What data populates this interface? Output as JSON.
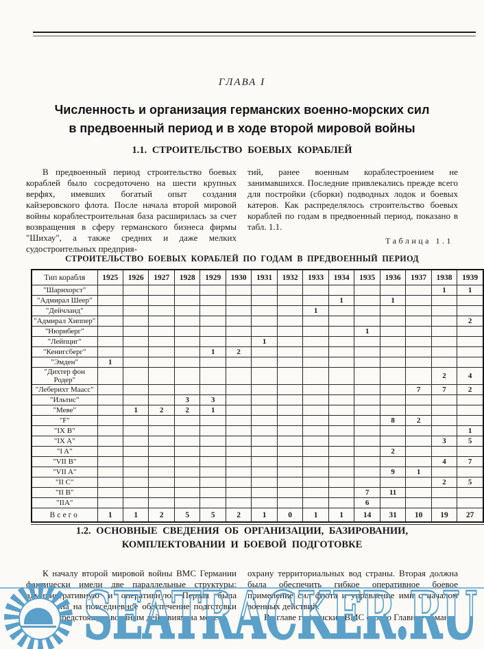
{
  "chapter": "ГЛАВА I",
  "title": {
    "line1": "Численность и организация германских военно-морских сил",
    "line2": "в предвоенный период и в ходе второй мировой войны"
  },
  "section1": {
    "heading": "1.1. СТРОИТЕЛЬСТВО БОЕВЫХ КОРАБЛЕЙ",
    "col_left": "В предвоенный период строительство боевых кораблей было сосредоточено на шести крупных верфях, имевших богатый опыт создания кайзеровского флота. После начала второй мировой войны кораблестроительная база расширилась за счет возвращения в сферу германского бизнеса фирмы \"Шихау\", а также средних и даже мелких судостроительных предприя-",
    "col_right": "тий, ранее военным кораблестроением не занимавшихся. Последние привлекались прежде всего для постройки (сборки) подводных лодок и боевых катеров. Как распределялось строительство боевых кораблей по годам в предвоенный период, показано в табл. 1.1.",
    "table_caption": "Таблица 1.1"
  },
  "table": {
    "title": "СТРОИТЕЛЬСТВО БОЕВЫХ КОРАБЛЕЙ ПО ГОДАМ В ПРЕДВОЕННЫЙ ПЕРИОД",
    "header": [
      "Тип корабля",
      "1925",
      "1926",
      "1927",
      "1928",
      "1929",
      "1930",
      "1931",
      "1932",
      "1933",
      "1934",
      "1935",
      "1936",
      "1937",
      "1938",
      "1939"
    ],
    "rows": [
      {
        "label": "\"Шарнхорст\"",
        "values": [
          "",
          "",
          "",
          "",
          "",
          "",
          "",
          "",
          "",
          "",
          "",
          "",
          "",
          "1",
          "1"
        ]
      },
      {
        "label": "\"Адмирал Шеер\"",
        "values": [
          "",
          "",
          "",
          "",
          "",
          "",
          "",
          "",
          "",
          "1",
          "",
          "1",
          "",
          "",
          ""
        ]
      },
      {
        "label": "\"Дейчланд\"",
        "values": [
          "",
          "",
          "",
          "",
          "",
          "",
          "",
          "",
          "1",
          "",
          "",
          "",
          "",
          "",
          ""
        ]
      },
      {
        "label": "\"Адмирал Хиппер\"",
        "values": [
          "",
          "",
          "",
          "",
          "",
          "",
          "",
          "",
          "",
          "",
          "",
          "",
          "",
          "",
          "2"
        ]
      },
      {
        "label": "\"Нюрнберг\"",
        "values": [
          "",
          "",
          "",
          "",
          "",
          "",
          "",
          "",
          "",
          "",
          "1",
          "",
          "",
          "",
          ""
        ]
      },
      {
        "label": "\"Лейпциг\"",
        "values": [
          "",
          "",
          "",
          "",
          "",
          "",
          "1",
          "",
          "",
          "",
          "",
          "",
          "",
          "",
          ""
        ]
      },
      {
        "label": "\"Кенигсберг\"",
        "values": [
          "",
          "",
          "",
          "",
          "1",
          "2",
          "",
          "",
          "",
          "",
          "",
          "",
          "",
          "",
          ""
        ]
      },
      {
        "label": "\"Эмден\"",
        "values": [
          "1",
          "",
          "",
          "",
          "",
          "",
          "",
          "",
          "",
          "",
          "",
          "",
          "",
          "",
          ""
        ]
      },
      {
        "label": "\"Дихтер фон Родер\"",
        "values": [
          "",
          "",
          "",
          "",
          "",
          "",
          "",
          "",
          "",
          "",
          "",
          "",
          "",
          "2",
          "4"
        ]
      },
      {
        "label": "\"Леберихт Маасс\"",
        "values": [
          "",
          "",
          "",
          "",
          "",
          "",
          "",
          "",
          "",
          "",
          "",
          "",
          "7",
          "7",
          "2"
        ]
      },
      {
        "label": "\"Ильтис\"",
        "values": [
          "",
          "",
          "",
          "3",
          "3",
          "",
          "",
          "",
          "",
          "",
          "",
          "",
          "",
          "",
          ""
        ]
      },
      {
        "label": "\"Меве\"",
        "values": [
          "",
          "1",
          "2",
          "2",
          "1",
          "",
          "",
          "",
          "",
          "",
          "",
          "",
          "",
          "",
          ""
        ]
      },
      {
        "label": "\"F\"",
        "values": [
          "",
          "",
          "",
          "",
          "",
          "",
          "",
          "",
          "",
          "",
          "",
          "8",
          "2",
          "",
          ""
        ]
      },
      {
        "label": "\"IX B\"",
        "values": [
          "",
          "",
          "",
          "",
          "",
          "",
          "",
          "",
          "",
          "",
          "",
          "",
          "",
          "",
          "1"
        ]
      },
      {
        "label": "\"IX A\"",
        "values": [
          "",
          "",
          "",
          "",
          "",
          "",
          "",
          "",
          "",
          "",
          "",
          "",
          "",
          "3",
          "5"
        ]
      },
      {
        "label": "\"I A\"",
        "values": [
          "",
          "",
          "",
          "",
          "",
          "",
          "",
          "",
          "",
          "",
          "",
          "2",
          "",
          "",
          ""
        ]
      },
      {
        "label": "\"VII B\"",
        "values": [
          "",
          "",
          "",
          "",
          "",
          "",
          "",
          "",
          "",
          "",
          "",
          "",
          "",
          "4",
          "7"
        ]
      },
      {
        "label": "\"VII A\"",
        "values": [
          "",
          "",
          "",
          "",
          "",
          "",
          "",
          "",
          "",
          "",
          "",
          "9",
          "1",
          "",
          ""
        ]
      },
      {
        "label": "\"II C\"",
        "values": [
          "",
          "",
          "",
          "",
          "",
          "",
          "",
          "",
          "",
          "",
          "",
          "",
          "",
          "2",
          "5"
        ]
      },
      {
        "label": "\"II B\"",
        "values": [
          "",
          "",
          "",
          "",
          "",
          "",
          "",
          "",
          "",
          "",
          "7",
          "11",
          "",
          "",
          ""
        ]
      },
      {
        "label": "\"IIA\"",
        "values": [
          "",
          "",
          "",
          "",
          "",
          "",
          "",
          "",
          "",
          "",
          "6",
          "",
          "",
          "",
          ""
        ]
      }
    ],
    "total": {
      "label": "Всего",
      "values": [
        "1",
        "1",
        "2",
        "5",
        "5",
        "2",
        "1",
        "0",
        "1",
        "1",
        "14",
        "31",
        "10",
        "19",
        "27"
      ]
    }
  },
  "section2": {
    "heading_line1": "1.2. ОСНОВНЫЕ СВЕДЕНИЯ ОБ ОРГАНИЗАЦИИ, БАЗИРОВАНИИ,",
    "heading_line2": "КОМПЛЕКТОВАНИИ И БОЕВОЙ ПОДГОТОВКЕ",
    "col_left": "К началу второй мировой войны ВМС Германии фактически имели две параллельные структуры: административную и оперативную. Первая была направлена на повседневное обеспечение подготовки флота к предстоящим военным действиям на море и",
    "col_right_p1": "охрану территориальных вод страны. Вторая должна была обеспечить гибкое оперативное боевое применение сил флота и управление ими с началом военных действий.",
    "col_right_p2": "Во главе германских ВМС стояло Главное коман-"
  },
  "watermark": {
    "text": "SEATRACKER.RU",
    "color": "#5ba0c9"
  }
}
